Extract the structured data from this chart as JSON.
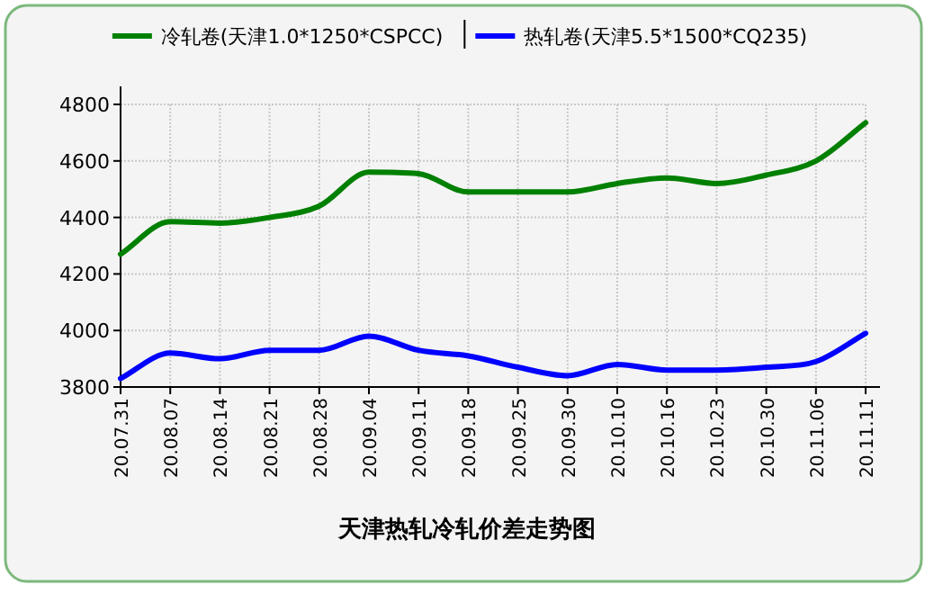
{
  "chart_data": {
    "type": "line",
    "title": "天津热轧冷轧价差走势图",
    "categories": [
      "20.07.31",
      "20.08.07",
      "20.08.14",
      "20.08.21",
      "20.08.28",
      "20.09.04",
      "20.09.11",
      "20.09.18",
      "20.09.25",
      "20.09.30",
      "20.10.10",
      "20.10.16",
      "20.10.23",
      "20.10.30",
      "20.11.06",
      "20.11.11"
    ],
    "series": [
      {
        "name": "冷轧卷(天津1.0*1250*CSPCC)",
        "color": "#008000",
        "values": [
          4270,
          4385,
          4380,
          4400,
          4440,
          4560,
          4555,
          4490,
          4490,
          4490,
          4520,
          4540,
          4520,
          4550,
          4600,
          4735
        ]
      },
      {
        "name": "热轧卷(天津5.5*1500*CQ235)",
        "color": "#0000ff",
        "values": [
          3830,
          3920,
          3900,
          3930,
          3930,
          3980,
          3930,
          3910,
          3870,
          3840,
          3880,
          3860,
          3860,
          3870,
          3890,
          3990
        ]
      }
    ],
    "ylim": [
      3800,
      4800
    ],
    "yticks": [
      3800,
      4000,
      4200,
      4400,
      4600,
      4800
    ],
    "grid": true,
    "legend": "top",
    "marker": "none",
    "line_style": "solid"
  }
}
